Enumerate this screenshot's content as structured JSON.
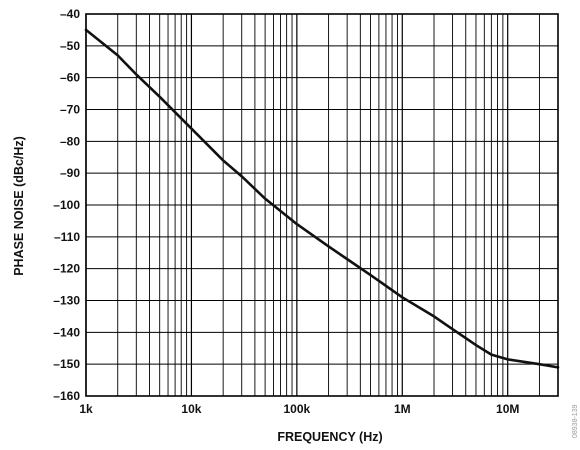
{
  "chart_data": {
    "type": "line",
    "title": "",
    "xlabel": "FREQUENCY (Hz)",
    "ylabel": "PHASE NOISE (dBc/Hz)",
    "x_scale": "log",
    "xlim": [
      1000,
      30000000
    ],
    "ylim": [
      -160,
      -40
    ],
    "grid": true,
    "legend": "none",
    "x_ticks": [
      {
        "value": 1000,
        "label": "1k"
      },
      {
        "value": 10000,
        "label": "10k"
      },
      {
        "value": 100000,
        "label": "100k"
      },
      {
        "value": 1000000,
        "label": "1M"
      },
      {
        "value": 10000000,
        "label": "10M"
      }
    ],
    "y_ticks": [
      -40,
      -50,
      -60,
      -70,
      -80,
      -90,
      -100,
      -110,
      -120,
      -130,
      -140,
      -150,
      -160
    ],
    "y_tick_labels": [
      "–40",
      "–50",
      "–60",
      "–70",
      "–80",
      "–90",
      "–100",
      "–110",
      "–120",
      "–130",
      "–140",
      "–150",
      "–160"
    ],
    "series": [
      {
        "x": [
          1000,
          2000,
          3000,
          5000,
          10000,
          20000,
          30000,
          50000,
          100000,
          200000,
          300000,
          500000,
          1000000,
          2000000,
          3000000,
          5000000,
          7000000,
          10000000,
          20000000,
          30000000
        ],
        "y": [
          -45,
          -53,
          -59,
          -66,
          -76,
          -86,
          -91,
          -98,
          -106,
          -113,
          -117,
          -122,
          -129,
          -135,
          -139,
          -144,
          -147,
          -148.5,
          -150,
          -151
        ]
      }
    ],
    "line_color": "#111111"
  },
  "side_code": "08938-139"
}
